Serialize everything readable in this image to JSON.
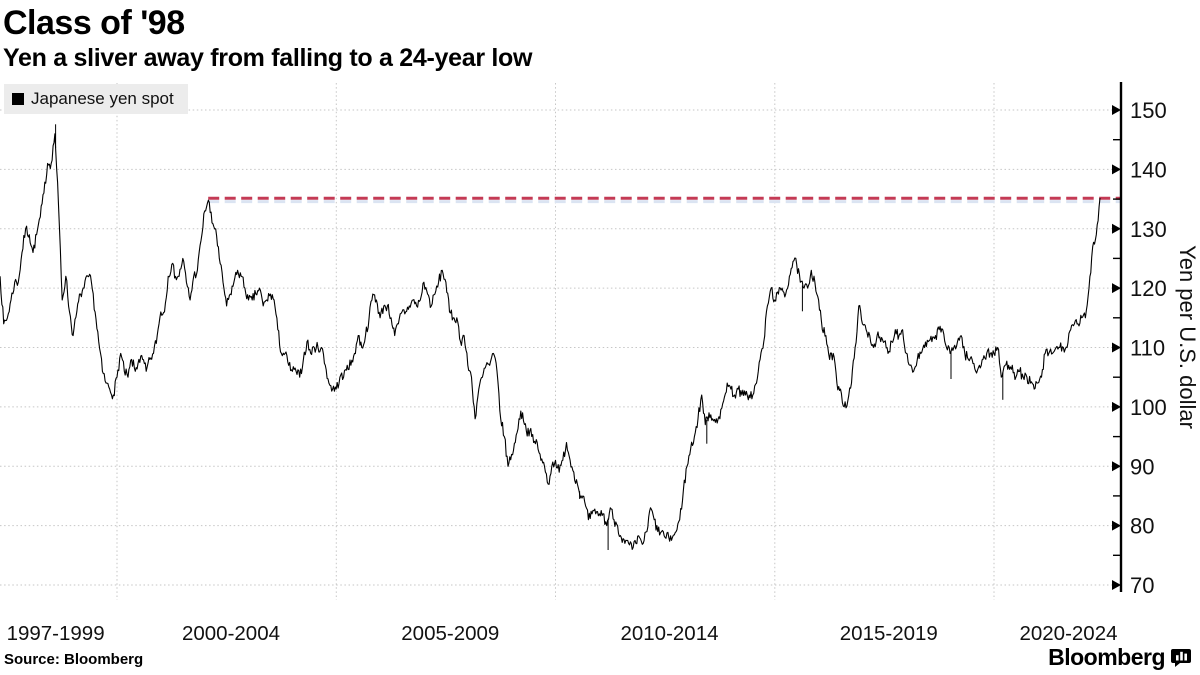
{
  "page": {
    "background": "#ffffff"
  },
  "header": {
    "title": "Class of '98",
    "subtitle": "Yen a sliver away from falling to a 24-year low"
  },
  "legend": {
    "swatch_color": "#000000",
    "label": "Japanese yen spot"
  },
  "footer": {
    "source": "Source: Bloomberg",
    "brand": "Bloomberg"
  },
  "chart_data": {
    "type": "line",
    "title": "Class of '98",
    "subtitle": "Yen a sliver away from falling to a 24-year low",
    "ylabel": "Yen per U.S. dollar",
    "ylim": [
      69,
      154.5
    ],
    "y_ticks": [
      70,
      80,
      90,
      100,
      110,
      120,
      130,
      140,
      150
    ],
    "y_minor_ticks": [
      75,
      85,
      95,
      105,
      115,
      125,
      135,
      145
    ],
    "x_axis": {
      "labels": [
        "1997-1999",
        "2000-2004",
        "2005-2009",
        "2010-2014",
        "2015-2019",
        "2020-2024"
      ],
      "label_center_years": [
        1998.6,
        2002.6,
        2007.6,
        2012.6,
        2017.6,
        2021.7
      ],
      "gridline_years": [
        2000,
        2005,
        2010,
        2015,
        2020
      ]
    },
    "grid": {
      "color": "#c6c6c6",
      "horizontal": true,
      "vertical": true
    },
    "reference_line": {
      "value": 135.15,
      "start_year": 2002.08,
      "style": "dashed",
      "color": "#c43a55",
      "shadow_color": "#dbe4f2"
    },
    "noise_amplitude": 0.9,
    "series": [
      {
        "name": "Japanese yen spot",
        "color": "#000000",
        "x_start_year": 1997.3333,
        "x_step_months": 1,
        "monthly_values": [
          122,
          114,
          115,
          118,
          121,
          121,
          126,
          130,
          129,
          126,
          129,
          132,
          136,
          141,
          141,
          146,
          134,
          118,
          122,
          116,
          112,
          116,
          119,
          120,
          122,
          121,
          116,
          111,
          106,
          104,
          103,
          102,
          105,
          109,
          106,
          105,
          108,
          106,
          108,
          108,
          106,
          108,
          109,
          112,
          116,
          116,
          122,
          124,
          122,
          122,
          125,
          121,
          118,
          122,
          123,
          128,
          133,
          134.8,
          131,
          130,
          125,
          121,
          117,
          119,
          121,
          123,
          122,
          120,
          118,
          118,
          119,
          120,
          117,
          118,
          119,
          118,
          113,
          109,
          109,
          107,
          106,
          106,
          105,
          108,
          111,
          109,
          110,
          110,
          110,
          107,
          104,
          103,
          103,
          105,
          105,
          107,
          107,
          109,
          112,
          110,
          112,
          115,
          119,
          118,
          115,
          117,
          117,
          115,
          112,
          114,
          116,
          116,
          117,
          118,
          117,
          118,
          121,
          119,
          117,
          119,
          121,
          123,
          121,
          116,
          115,
          115,
          111,
          112,
          107,
          105,
          98,
          103,
          105,
          107,
          107,
          109,
          106,
          98,
          95,
          90,
          92,
          94,
          98,
          99,
          96,
          96,
          94,
          94,
          91,
          90,
          87,
          90,
          91,
          89,
          91,
          94,
          91,
          89,
          87,
          85,
          84,
          81,
          82,
          82,
          82,
          82,
          80,
          83,
          81,
          80,
          78,
          77,
          77,
          76,
          77,
          78,
          77,
          79,
          83,
          81,
          79,
          79,
          78,
          78,
          78,
          79,
          81,
          86,
          90,
          93,
          95,
          98,
          102,
          97,
          99,
          98,
          98,
          98,
          101,
          104,
          103,
          102,
          103,
          102,
          102,
          102,
          102,
          104,
          108,
          111,
          117,
          120,
          118,
          119,
          120,
          119,
          122,
          124.5,
          124,
          121,
          120,
          120,
          123,
          121,
          118,
          113,
          112,
          108,
          109,
          104,
          103,
          100,
          101,
          104,
          110,
          117,
          114,
          113,
          112,
          110,
          112,
          111,
          111,
          109,
          111,
          113,
          112,
          113,
          109,
          107,
          106,
          108,
          109,
          110,
          111,
          111,
          112,
          113,
          113,
          110,
          109,
          110,
          111,
          112,
          109,
          108,
          108,
          106,
          107,
          108,
          109,
          109,
          109,
          110,
          105,
          107,
          107,
          107,
          105,
          106,
          105,
          105,
          104,
          103,
          104,
          105,
          109,
          109,
          109,
          110,
          110,
          110,
          110,
          113,
          114,
          114,
          115,
          115,
          120,
          127,
          129,
          135.2
        ]
      }
    ],
    "flash_spikes": [
      {
        "year": 1998.6,
        "value": 147.6
      },
      {
        "year": 2010.55,
        "value": 84.5
      },
      {
        "year": 2011.2,
        "value": 75.9
      },
      {
        "year": 2013.45,
        "value": 93.8
      },
      {
        "year": 2015.63,
        "value": 116.1
      },
      {
        "year": 2019.02,
        "value": 104.7
      },
      {
        "year": 2020.2,
        "value": 101.2
      }
    ]
  }
}
